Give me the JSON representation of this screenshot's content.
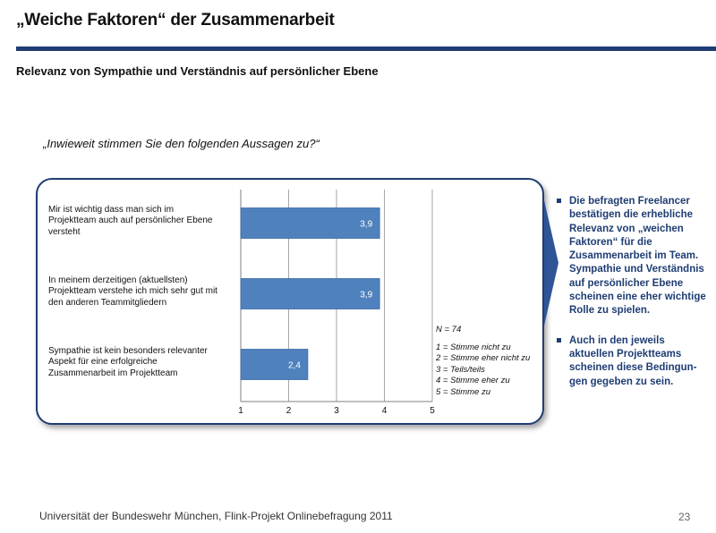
{
  "slide": {
    "title": "„Weiche Faktoren“ der Zusammenarbeit",
    "subtitle": "Relevanz von Sympathie und Verständnis auf persönlicher Ebene",
    "question": "„Inwieweit stimmen Sie den folgenden Aussagen zu?“",
    "footer": "Universität der Bundeswehr München, Flink-Projekt Onlinebefragung  2011",
    "page_number": "23",
    "colors": {
      "accent": "#1f3d73",
      "bar": "#4f81bd"
    }
  },
  "chart_data": {
    "type": "bar",
    "orientation": "horizontal",
    "categories": [
      "Mir ist wichtig dass man sich im Projektteam auch auf persönlicher Ebene versteht",
      "In meinem derzeitigen (aktuellsten) Projektteam verstehe ich mich sehr gut mit den anderen Teammitgliedern",
      "Sympathie ist kein besonders relevanter Aspekt  für eine erfolgreiche Zusammenarbeit im Projektteam"
    ],
    "category_lines": [
      [
        "Mir ist wichtig dass man sich im",
        "Projektteam auch auf persönlicher Ebene",
        "versteht"
      ],
      [
        "In meinem derzeitigen (aktuellsten)",
        "Projektteam verstehe ich mich sehr gut mit",
        "den anderen Teammitgliedern"
      ],
      [
        "Sympathie ist kein besonders relevanter",
        "Aspekt  für eine erfolgreiche",
        "Zusammenarbeit im Projektteam"
      ]
    ],
    "values": [
      3.9,
      3.9,
      2.4
    ],
    "value_labels": [
      "3,9",
      "3,9",
      "2,4"
    ],
    "xlim": [
      1,
      5
    ],
    "ticks": [
      "1",
      "2",
      "3",
      "4",
      "5"
    ],
    "grid": true,
    "legend": {
      "n": "N = 74",
      "items": [
        "1 = Stimme nicht zu",
        "2 = Stimme eher nicht zu",
        "3 = Teils/teils",
        "4 = Stimme eher zu",
        "5 = Stimme zu"
      ]
    }
  },
  "bullets": [
    "Die befragten Freelancer bestätigen die erhebliche Relevanz von  „weichen Faktoren“ für die Zusammenarbeit im Team. Sympathie und Verständnis auf persönlicher Ebene scheinen eine eher wichtige Rolle zu spielen.",
    "Auch in den jeweils aktuellen Projektteams scheinen diese Bedingun-gen gegeben zu sein."
  ]
}
